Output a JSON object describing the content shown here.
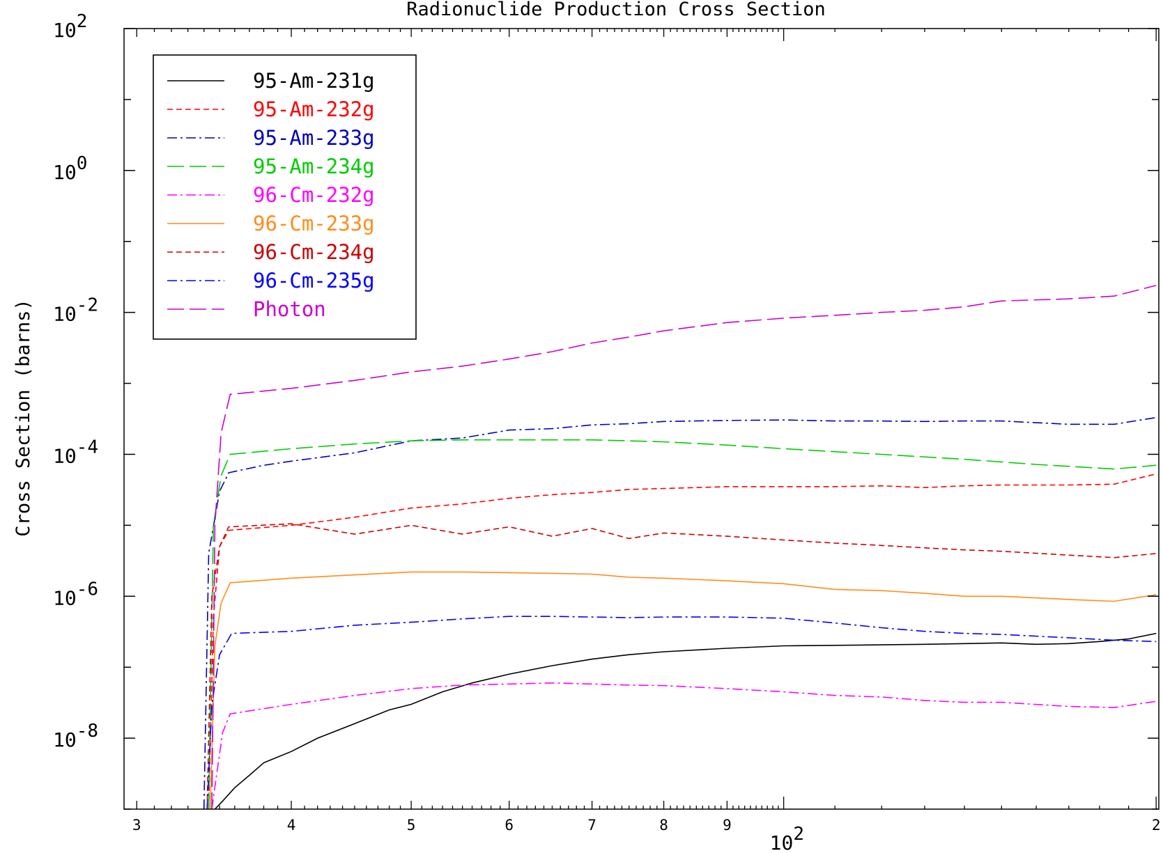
{
  "chart_data": {
    "type": "line",
    "title": "Radionuclide Production Cross Section",
    "ylabel": "Cross Section (barns)",
    "xlabel": "",
    "xscale": "log",
    "yscale": "log",
    "xlim": [
      29.3,
      201
    ],
    "ylim": [
      1e-09,
      100
    ],
    "grid": false,
    "legend_position": "top-left",
    "x_ticks": [
      {
        "value": 30,
        "label": "3"
      },
      {
        "value": 40,
        "label": "4"
      },
      {
        "value": 50,
        "label": "5"
      },
      {
        "value": 60,
        "label": "6"
      },
      {
        "value": 70,
        "label": "7"
      },
      {
        "value": 80,
        "label": "8"
      },
      {
        "value": 90,
        "label": "9"
      },
      {
        "value": 200,
        "label": "2"
      }
    ],
    "x_major_label": {
      "base": "10",
      "exp": "2",
      "value": 100
    },
    "y_ticks": [
      {
        "value": 100,
        "base": "10",
        "exp": "2"
      },
      {
        "value": 1,
        "base": "10",
        "exp": "0"
      },
      {
        "value": 0.01,
        "base": "10",
        "exp": "-2"
      },
      {
        "value": 0.0001,
        "base": "10",
        "exp": "-4"
      },
      {
        "value": 1e-06,
        "base": "10",
        "exp": "-6"
      },
      {
        "value": 1e-08,
        "base": "10",
        "exp": "-8"
      }
    ],
    "series": [
      {
        "name": "95-Am-231g",
        "color": "#000000",
        "dash": "",
        "x": [
          34.7,
          35.2,
          36,
          37,
          38,
          40,
          42,
          45,
          48,
          50,
          53,
          56,
          60,
          65,
          70,
          75,
          80,
          90,
          100,
          115,
          130,
          150,
          160,
          170,
          180,
          190,
          200
        ],
        "y": [
          1e-09,
          1.3e-09,
          2e-09,
          3e-09,
          4.5e-09,
          6.5e-09,
          1e-08,
          1.6e-08,
          2.5e-08,
          3e-08,
          4.5e-08,
          6e-08,
          8e-08,
          1.05e-07,
          1.3e-07,
          1.5e-07,
          1.65e-07,
          1.85e-07,
          2e-07,
          2.05e-07,
          2.1e-07,
          2.2e-07,
          2.1e-07,
          2.15e-07,
          2.3e-07,
          2.5e-07,
          3e-07
        ]
      },
      {
        "name": "95-Am-232g",
        "color": "#ff0000",
        "dash": "8,5",
        "x": [
          34.3,
          34.6,
          35,
          35.6,
          40,
          45,
          50,
          55,
          60,
          65,
          70,
          75,
          80,
          90,
          100,
          110,
          120,
          130,
          140,
          150,
          170,
          185,
          200
        ],
        "y": [
          1e-09,
          5e-07,
          5e-06,
          8.5e-06,
          1e-05,
          1.3e-05,
          1.75e-05,
          2e-05,
          2.4e-05,
          2.7e-05,
          2.9e-05,
          3.2e-05,
          3.3e-05,
          3.5e-05,
          3.5e-05,
          3.5e-05,
          3.6e-05,
          3.4e-05,
          3.6e-05,
          3.7e-05,
          3.7e-05,
          3.8e-05,
          5.3e-05
        ]
      },
      {
        "name": "95-Am-233g",
        "color": "#0000bb",
        "dash": "14,5,3,5",
        "x": [
          34.0,
          34.3,
          35,
          35.6,
          38,
          40,
          45,
          50,
          55,
          60,
          65,
          70,
          75,
          80,
          90,
          100,
          110,
          120,
          130,
          140,
          150,
          170,
          185,
          200
        ],
        "y": [
          1e-09,
          4e-06,
          3e-05,
          5.5e-05,
          7e-05,
          8e-05,
          0.000105,
          0.000155,
          0.00017,
          0.00022,
          0.00023,
          0.00026,
          0.00027,
          0.00029,
          0.0003,
          0.000305,
          0.000295,
          0.000295,
          0.00029,
          0.000295,
          0.000295,
          0.000265,
          0.000265,
          0.00033
        ]
      },
      {
        "name": "95-Am-234g",
        "color": "#00cc00",
        "dash": "24,8",
        "x": [
          34.3,
          34.6,
          35.1,
          35.7,
          40,
          45,
          50,
          55,
          60,
          65,
          70,
          75,
          80,
          90,
          100,
          120,
          140,
          160,
          185,
          200
        ],
        "y": [
          1e-09,
          1e-05,
          5e-05,
          0.0001,
          0.00012,
          0.00014,
          0.000155,
          0.00016,
          0.00016,
          0.00016,
          0.00016,
          0.000155,
          0.00015,
          0.000135,
          0.00012,
          0.0001,
          8.5e-05,
          7.2e-05,
          6.2e-05,
          7e-05
        ]
      },
      {
        "name": "96-Cm-232g",
        "color": "#ff00ff",
        "dash": "14,5,3,5",
        "x": [
          34.5,
          34.8,
          35.2,
          35.7,
          40,
          45,
          50,
          55,
          60,
          65,
          70,
          75,
          80,
          90,
          100,
          110,
          120,
          130,
          140,
          150,
          170,
          185,
          200
        ],
        "y": [
          1e-09,
          3e-09,
          1.2e-08,
          2.2e-08,
          3e-08,
          4e-08,
          5e-08,
          5.6e-08,
          5.8e-08,
          6e-08,
          5.8e-08,
          5.6e-08,
          5.5e-08,
          5e-08,
          4.5e-08,
          4e-08,
          3.8e-08,
          3.4e-08,
          3.2e-08,
          3.2e-08,
          2.8e-08,
          2.7e-08,
          3.3e-08
        ]
      },
      {
        "name": "96-Cm-233g",
        "color": "#ff8c1a",
        "dash": "",
        "x": [
          34.4,
          34.7,
          35.1,
          35.7,
          40,
          45,
          50,
          55,
          60,
          65,
          70,
          75,
          80,
          90,
          100,
          110,
          120,
          130,
          140,
          150,
          170,
          185,
          200
        ],
        "y": [
          1e-09,
          2e-07,
          8e-07,
          1.55e-06,
          1.8e-06,
          2e-06,
          2.2e-06,
          2.2e-06,
          2.15e-06,
          2.1e-06,
          2.05e-06,
          1.85e-06,
          1.8e-06,
          1.65e-06,
          1.5e-06,
          1.25e-06,
          1.2e-06,
          1.1e-06,
          1e-06,
          1e-06,
          9e-07,
          8.5e-07,
          1.05e-06
        ]
      },
      {
        "name": "96-Cm-234g",
        "color": "#cc0000",
        "dash": "8,5",
        "x": [
          34.2,
          34.5,
          35,
          35.6,
          40,
          45,
          50,
          55,
          60,
          65,
          70,
          75,
          80,
          90,
          100,
          110,
          120,
          130,
          140,
          150,
          170,
          185,
          200
        ],
        "y": [
          1e-09,
          1e-06,
          5e-06,
          9.5e-06,
          1.05e-05,
          7.5e-06,
          1e-05,
          7.5e-06,
          9.5e-06,
          7e-06,
          9e-06,
          6.5e-06,
          7.8e-06,
          7e-06,
          6.2e-06,
          5.6e-06,
          5.2e-06,
          4.8e-06,
          4.5e-06,
          4.3e-06,
          3.8e-06,
          3.5e-06,
          4e-06
        ]
      },
      {
        "name": "96-Cm-235g",
        "color": "#0000ff",
        "dash": "14,5,3,5",
        "x": [
          34.2,
          34.5,
          35,
          35.8,
          40,
          45,
          50,
          55,
          60,
          65,
          70,
          75,
          80,
          90,
          100,
          110,
          120,
          130,
          140,
          150,
          170,
          185,
          200
        ],
        "y": [
          1e-09,
          3e-08,
          1.5e-07,
          3e-07,
          3.2e-07,
          3.9e-07,
          4.3e-07,
          4.8e-07,
          5.2e-07,
          5.2e-07,
          5.1e-07,
          5e-07,
          5.1e-07,
          5.1e-07,
          4.9e-07,
          4.2e-07,
          3.6e-07,
          3.2e-07,
          3e-07,
          2.9e-07,
          2.6e-07,
          2.4e-07,
          2.3e-07
        ]
      },
      {
        "name": "Photon",
        "color": "#cc00cc",
        "dash": "24,8",
        "x": [
          34.5,
          34.7,
          35.1,
          35.7,
          40,
          45,
          50,
          55,
          60,
          65,
          70,
          75,
          80,
          90,
          100,
          110,
          120,
          130,
          140,
          150,
          170,
          185,
          200
        ],
        "y": [
          1e-09,
          1e-05,
          0.0002,
          0.0007,
          0.00085,
          0.0011,
          0.00145,
          0.00175,
          0.0022,
          0.0028,
          0.0037,
          0.0045,
          0.0055,
          0.0072,
          0.0083,
          0.0091,
          0.01,
          0.0107,
          0.012,
          0.0145,
          0.0155,
          0.017,
          0.024
        ]
      }
    ]
  }
}
